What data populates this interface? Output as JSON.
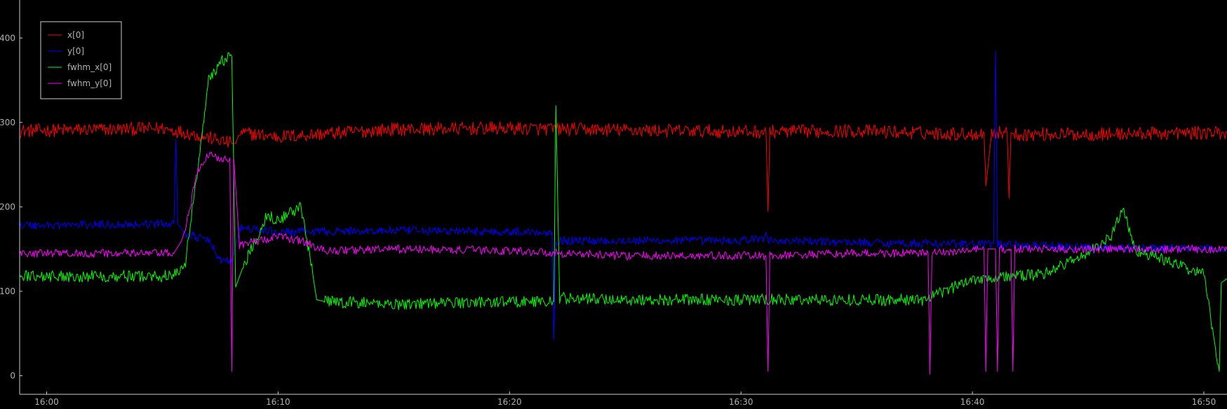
{
  "chart_data": {
    "type": "line",
    "title": "",
    "xlabel": "",
    "ylabel": "",
    "background": "#000000",
    "axis_color": "#cccccc",
    "text_color": "#b0b0b0",
    "grid": false,
    "legend_position": "top-left",
    "x_unit": "time (HH:MM)",
    "xlim": [
      "15:58:50",
      "16:51:00"
    ],
    "ylim": [
      -22,
      445
    ],
    "x_ticks": [
      "16:00",
      "16:10",
      "16:20",
      "16:30",
      "16:40",
      "16:50"
    ],
    "y_ticks": [
      0,
      100,
      200,
      300,
      400
    ],
    "series": [
      {
        "name": "x[0]",
        "color": "#ff0000",
        "noise": 8,
        "x": [
          "15:58:50",
          "16:05:00",
          "16:06:00",
          "16:07:00",
          "16:08:00",
          "16:08:10",
          "16:08:20",
          "16:10:00",
          "16:15:00",
          "16:20:00",
          "16:25:00",
          "16:30:00",
          "16:31:05",
          "16:31:10",
          "16:31:15",
          "16:35:00",
          "16:40:00",
          "16:40:30",
          "16:40:35",
          "16:40:50",
          "16:41:30",
          "16:41:35",
          "16:41:40",
          "16:41:50",
          "16:45:00",
          "16:51:00"
        ],
        "y": [
          290,
          293,
          288,
          282,
          275,
          275,
          288,
          283,
          292,
          293,
          291,
          289,
          289,
          195,
          289,
          290,
          286,
          288,
          225,
          288,
          288,
          210,
          288,
          286,
          286,
          288
        ]
      },
      {
        "name": "y[0]",
        "color": "#0000ff",
        "noise": 5,
        "x": [
          "15:58:50",
          "16:05:30",
          "16:05:35",
          "16:05:40",
          "16:06:00",
          "16:07:00",
          "16:07:30",
          "16:08:00",
          "16:08:20",
          "16:10:00",
          "16:15:00",
          "16:21:50",
          "16:21:55",
          "16:22:00",
          "16:25:00",
          "16:30:00",
          "16:31:00",
          "16:31:05",
          "16:31:10",
          "16:35:00",
          "16:40:00",
          "16:40:55",
          "16:41:00",
          "16:41:05",
          "16:45:00",
          "16:51:00"
        ],
        "y": [
          178,
          180,
          280,
          180,
          168,
          160,
          137,
          135,
          175,
          170,
          172,
          170,
          43,
          160,
          160,
          160,
          163,
          170,
          160,
          158,
          156,
          156,
          385,
          156,
          152,
          150
        ]
      },
      {
        "name": "fwhm_x[0]",
        "color": "#00ff00",
        "noise": 7,
        "x": [
          "15:58:50",
          "16:05:30",
          "16:06:00",
          "16:06:30",
          "16:07:00",
          "16:07:30",
          "16:08:00",
          "16:08:10",
          "16:08:30",
          "16:09:00",
          "16:09:30",
          "16:10:00",
          "16:11:00",
          "16:11:30",
          "16:11:40",
          "16:12:00",
          "16:15:00",
          "16:20:00",
          "16:21:55",
          "16:22:00",
          "16:22:10",
          "16:25:00",
          "16:30:00",
          "16:35:00",
          "16:38:00",
          "16:40:00",
          "16:43:00",
          "16:45:00",
          "16:46:00",
          "16:46:30",
          "16:47:00",
          "16:50:00",
          "16:50:40",
          "16:50:45",
          "16:51:00"
        ],
        "y": [
          118,
          118,
          135,
          240,
          350,
          372,
          378,
          105,
          130,
          160,
          190,
          185,
          200,
          120,
          90,
          88,
          85,
          88,
          88,
          320,
          92,
          90,
          90,
          90,
          90,
          115,
          120,
          145,
          165,
          200,
          150,
          120,
          5,
          110,
          115
        ]
      },
      {
        "name": "fwhm_y[0]",
        "color": "#ff00ff",
        "noise": 5,
        "x": [
          "15:58:50",
          "16:05:30",
          "16:05:50",
          "16:06:00",
          "16:06:30",
          "16:07:00",
          "16:07:30",
          "16:07:55",
          "16:08:00",
          "16:08:05",
          "16:08:20",
          "16:10:00",
          "16:11:00",
          "16:12:00",
          "16:15:00",
          "16:20:00",
          "16:25:00",
          "16:31:05",
          "16:31:10",
          "16:31:15",
          "16:35:00",
          "16:38:05",
          "16:38:10",
          "16:38:15",
          "16:40:30",
          "16:40:35",
          "16:40:40",
          "16:41:00",
          "16:41:05",
          "16:41:10",
          "16:41:40",
          "16:41:45",
          "16:41:50",
          "16:45:00",
          "16:51:00"
        ],
        "y": [
          145,
          145,
          160,
          175,
          240,
          262,
          258,
          258,
          5,
          258,
          155,
          165,
          160,
          148,
          150,
          148,
          142,
          142,
          5,
          142,
          145,
          145,
          2,
          145,
          150,
          5,
          150,
          150,
          5,
          150,
          150,
          5,
          150,
          150,
          150
        ]
      }
    ]
  }
}
